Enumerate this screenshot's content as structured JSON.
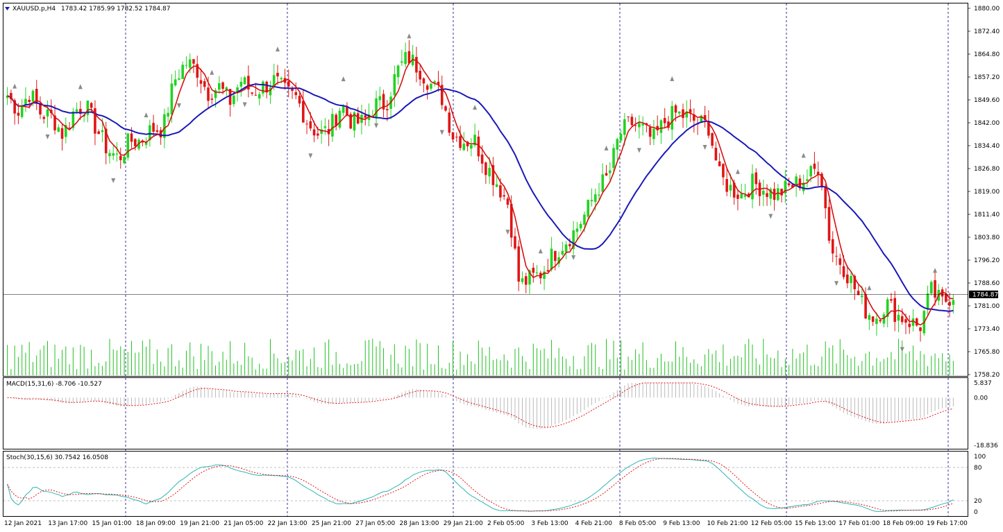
{
  "colors": {
    "bull": "#21d321",
    "bear": "#e01515",
    "ma_fast": "#d41111",
    "ma_slow": "#1818b8",
    "volume": "#20c020",
    "macd_hist": "#b9b9b9",
    "macd_signal": "#e01515",
    "stoch_main": "#2cb5b5",
    "stoch_signal": "#e01515",
    "fractal": "#8a8a8a",
    "grid_sep": "#000080"
  },
  "main_panel": {
    "symbol_label": "XAUUSD.p,H4",
    "ohlc_text": "1783.42 1785.99 1782.52 1784.87",
    "price_ticks": [
      "1880.00",
      "1872.40",
      "1864.80",
      "1857.20",
      "1849.60",
      "1842.00",
      "1834.40",
      "1826.80",
      "1819.00",
      "1811.40",
      "1803.80",
      "1796.20",
      "1788.60",
      "1781.00",
      "1773.40",
      "1765.80",
      "1758.20"
    ],
    "current_price": "1784.87",
    "ylim": [
      1758.2,
      1880.0
    ]
  },
  "macd_panel": {
    "label": "MACD(15,31,6) -8.706 -10.527",
    "ticks": [
      "5.837",
      "0.00",
      "-18.836"
    ],
    "ylim": [
      -18.836,
      5.837
    ]
  },
  "stoch_panel": {
    "label": "Stoch(30,15,6) 30.7542 16.0508",
    "ticks": [
      "100",
      "80",
      "20",
      "0"
    ],
    "levels": [
      80,
      20
    ]
  },
  "time_axis": {
    "labels": [
      "12 Jan 2021",
      "13 Jan 17:00",
      "15 Jan 01:00",
      "18 Jan 09:00",
      "19 Jan 21:00",
      "21 Jan 05:00",
      "22 Jan 13:00",
      "25 Jan 21:00",
      "27 Jan 05:00",
      "28 Jan 13:00",
      "29 Jan 21:00",
      "2 Feb 05:00",
      "3 Feb 13:00",
      "4 Feb 21:00",
      "8 Feb 05:00",
      "9 Feb 13:00",
      "10 Feb 21:00",
      "12 Feb 05:00",
      "15 Feb 13:00",
      "17 Feb 01:00",
      "18 Feb 09:00",
      "19 Feb 17:00"
    ]
  },
  "chart_data": {
    "type": "candlestick",
    "symbol": "XAUUSD.p",
    "timeframe": "H4",
    "close_anchors": [
      1851,
      1846,
      1852,
      1845,
      1844,
      1838,
      1846,
      1848,
      1840,
      1833,
      1830,
      1836,
      1836,
      1840,
      1840,
      1856,
      1862,
      1860,
      1852,
      1854,
      1849,
      1856,
      1852,
      1854,
      1856,
      1852,
      1850,
      1842,
      1838,
      1840,
      1848,
      1842,
      1842,
      1848,
      1848,
      1859,
      1864,
      1860,
      1855,
      1851,
      1838,
      1836,
      1836,
      1828,
      1822,
      1815,
      1788,
      1790,
      1792,
      1798,
      1802,
      1806,
      1812,
      1820,
      1824,
      1838,
      1842,
      1840,
      1836,
      1842,
      1845,
      1844,
      1842,
      1841,
      1824,
      1820,
      1818,
      1822,
      1820,
      1818,
      1820,
      1822,
      1824,
      1828,
      1800,
      1795,
      1788,
      1780,
      1777,
      1782,
      1778,
      1776,
      1774,
      1786,
      1782,
      1785
    ],
    "volume_range": [
      0,
      1
    ],
    "volume_note_values": "relative bar heights",
    "macd_main_shape": "histogram oscillating between -18.8 and 5.8",
    "stoch_range": [
      0,
      100
    ]
  }
}
